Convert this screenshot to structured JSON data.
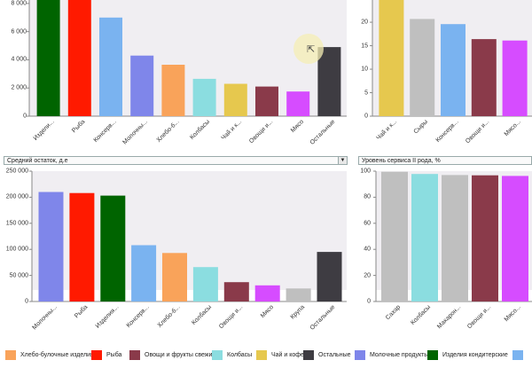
{
  "dropdowns": {
    "bottom_left": "Средний остаток, д.е",
    "bottom_right": "Уровень сервиса II рода, %"
  },
  "colors": {
    "Хлебо-булочные изделия": "#f9a35a",
    "Рыба": "#ff1a00",
    "Овощи и фрукты свежие": "#8a3a4a",
    "Колбасы": "#8bdde0",
    "Чай и кофе": "#e6c84e",
    "Остальные": "#3e3c42",
    "Молочные продукты": "#7f86ea",
    "Изделия кондитерские": "#006400",
    "Консервы": "#7ab3f0",
    "Мясо": "#d64cff",
    "Крупа": "#bfbfbf",
    "Сыры": "#bfbfbf",
    "Сахар": "#bfbfbf",
    "Макароны": "#bfbfbf"
  },
  "chart_data": [
    {
      "id": "top_left",
      "type": "bar",
      "categories": [
        "Издели...",
        "Рыба",
        "Консерв...",
        "Молочны...",
        "Хлебо-б...",
        "Колбасы",
        "Чай и к...",
        "Овощи и...",
        "Мясо",
        "Остальные"
      ],
      "keys": [
        "Изделия кондитерские",
        "Рыба",
        "Консервы",
        "Молочные продукты",
        "Хлебо-булочные изделия",
        "Колбасы",
        "Чай и кофе",
        "Овощи и фрукты свежие",
        "Мясо",
        "Остальные"
      ],
      "values": [
        9200,
        9200,
        7000,
        4300,
        3650,
        2650,
        2300,
        2100,
        1750,
        4900
      ],
      "yticks": [
        0,
        2000,
        4000,
        6000,
        8000
      ],
      "ytick_labels": [
        "0",
        "2 000",
        "4 000",
        "6 000",
        "8 000"
      ],
      "ylim": [
        0,
        9000
      ]
    },
    {
      "id": "top_right",
      "type": "bar",
      "categories": [
        "Чай и к...",
        "Сыры",
        "Консерв...",
        "Овощи и...",
        "Мясо..."
      ],
      "keys": [
        "Чай и кофе",
        "Сыры",
        "Консервы",
        "Овощи и фрукты свежие",
        "Мясо"
      ],
      "values": [
        27.5,
        20.7,
        19.6,
        16.4,
        16.1
      ],
      "yticks": [
        0,
        5,
        10,
        15,
        20,
        25
      ],
      "ytick_labels": [
        "0",
        "5",
        "10",
        "15",
        "20",
        "25"
      ],
      "ylim": [
        0,
        27
      ]
    },
    {
      "id": "bottom_left",
      "type": "bar",
      "categories": [
        "Молочны...",
        "Рыба",
        "Изделия...",
        "Консерв...",
        "Хлебо-б...",
        "Колбасы",
        "Овощи и...",
        "Мясо",
        "Крупа",
        "Остальные"
      ],
      "keys": [
        "Молочные продукты",
        "Рыба",
        "Изделия кондитерские",
        "Консервы",
        "Хлебо-булочные изделия",
        "Колбасы",
        "Овощи и фрукты свежие",
        "Мясо",
        "Крупа",
        "Остальные"
      ],
      "values": [
        210000,
        208000,
        203000,
        108000,
        93000,
        66000,
        37000,
        31000,
        25000,
        95000
      ],
      "yticks": [
        0,
        50000,
        100000,
        150000,
        200000,
        250000
      ],
      "ytick_labels": [
        "0",
        "50 000",
        "100 000",
        "150 000",
        "200 000",
        "250 000"
      ],
      "ylim": [
        0,
        250000
      ]
    },
    {
      "id": "bottom_right",
      "type": "bar",
      "categories": [
        "Сахар",
        "Колбасы",
        "Макарон...",
        "Овощи и...",
        "Мясо..."
      ],
      "keys": [
        "Сахар",
        "Колбасы",
        "Макароны",
        "Овощи и фрукты свежие",
        "Мясо"
      ],
      "values": [
        99.5,
        97.8,
        97.0,
        96.8,
        96.3
      ],
      "yticks": [
        0,
        20,
        40,
        60,
        80,
        100
      ],
      "ytick_labels": [
        "0",
        "20",
        "40",
        "60",
        "80",
        "100"
      ],
      "ylim": [
        0,
        100
      ]
    }
  ],
  "legend": [
    {
      "label": "Хлебо-булочные изделия",
      "color": "#f9a35a"
    },
    {
      "label": "Рыба",
      "color": "#ff1a00"
    },
    {
      "label": "Овощи и фрукты свежие",
      "color": "#8a3a4a"
    },
    {
      "label": "Колбасы",
      "color": "#8bdde0"
    },
    {
      "label": "Чай и кофе",
      "color": "#e6c84e"
    },
    {
      "label": "Остальные",
      "color": "#3e3c42"
    },
    {
      "label": "Молочные продукты",
      "color": "#7f86ea"
    },
    {
      "label": "Изделия кондитерские",
      "color": "#006400"
    },
    {
      "label": "",
      "color": "#7ab3f0"
    }
  ]
}
